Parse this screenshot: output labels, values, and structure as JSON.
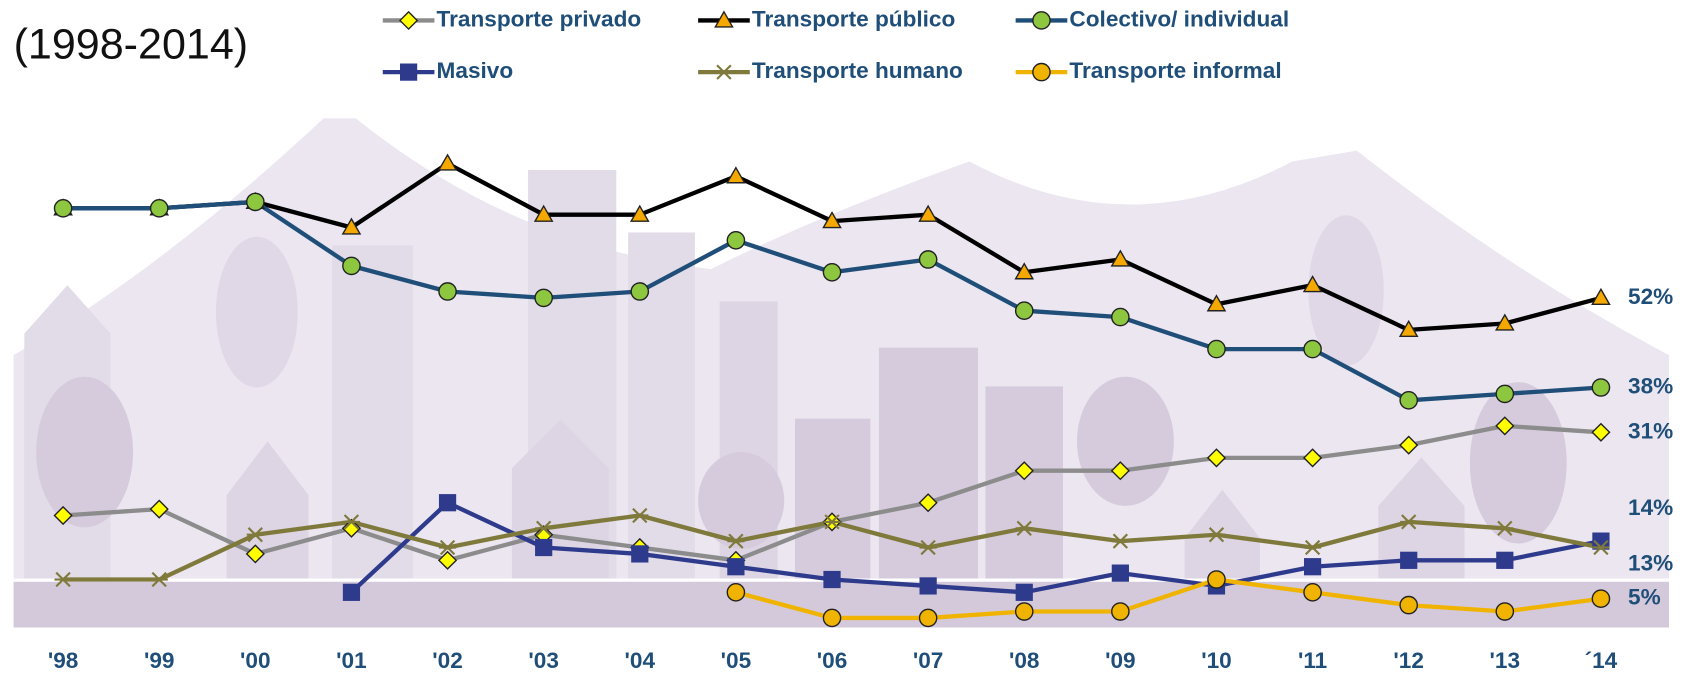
{
  "chart_data": {
    "type": "line",
    "title": "(1998-2014)",
    "categories": [
      "'98",
      "'99",
      "'00",
      "'01",
      "'02",
      "'03",
      "'04",
      "'05",
      "'06",
      "'07",
      "'08",
      "'09",
      "'10",
      "'11",
      "'12",
      "'13",
      "´14"
    ],
    "ylim": [
      0,
      75
    ],
    "series": [
      {
        "name": "Transporte privado",
        "color": "#8c8c8c",
        "marker": "diamond",
        "marker_color": "#ffff00",
        "values": [
          18,
          19,
          12,
          16,
          11,
          15,
          13,
          11,
          17,
          20,
          25,
          25,
          27,
          27,
          29,
          32,
          31
        ],
        "value_labels": [
          null,
          null,
          null,
          null,
          null,
          null,
          null,
          null,
          null,
          null,
          null,
          null,
          null,
          null,
          null,
          null,
          "31%"
        ]
      },
      {
        "name": "Transporte público",
        "color": "#000000",
        "marker": "triangle",
        "marker_color": "#f5a800",
        "values": [
          66,
          66,
          67,
          63,
          73,
          65,
          65,
          71,
          64,
          65,
          56,
          58,
          51,
          54,
          47,
          48,
          52
        ],
        "value_labels": [
          null,
          null,
          null,
          null,
          null,
          null,
          null,
          null,
          null,
          null,
          null,
          null,
          null,
          null,
          null,
          null,
          "52%"
        ]
      },
      {
        "name": "Colectivo/ individual",
        "color": "#1f4e79",
        "marker": "circle",
        "marker_color": "#8dc63f",
        "values": [
          66,
          66,
          67,
          57,
          53,
          52,
          53,
          61,
          56,
          58,
          50,
          49,
          44,
          44,
          36,
          37,
          38
        ],
        "value_labels": [
          null,
          null,
          null,
          null,
          null,
          null,
          null,
          null,
          null,
          null,
          null,
          null,
          null,
          null,
          null,
          null,
          "38%"
        ]
      },
      {
        "name": "Masivo",
        "color": "#2e3a8c",
        "marker": "square",
        "marker_color": "#2e3a8c",
        "values": [
          null,
          null,
          null,
          6,
          20,
          13,
          12,
          10,
          8,
          7,
          6,
          9,
          7,
          10,
          11,
          11,
          14
        ],
        "value_labels": [
          null,
          null,
          null,
          null,
          null,
          null,
          null,
          null,
          null,
          null,
          null,
          null,
          null,
          null,
          null,
          null,
          "14%"
        ]
      },
      {
        "name": "Transporte humano",
        "color": "#7f7a3c",
        "marker": "asterisk",
        "marker_color": "#7f7a3c",
        "values": [
          8,
          8,
          15,
          17,
          13,
          16,
          18,
          14,
          17,
          13,
          16,
          14,
          15,
          13,
          17,
          16,
          13
        ],
        "value_labels": [
          null,
          null,
          null,
          null,
          null,
          null,
          null,
          null,
          null,
          null,
          null,
          null,
          null,
          null,
          null,
          null,
          "13%"
        ]
      },
      {
        "name": "Transporte informal",
        "color": "#f0b400",
        "marker": "circle",
        "marker_color": "#f0b400",
        "values": [
          null,
          null,
          null,
          null,
          null,
          null,
          null,
          6,
          2,
          2,
          3,
          3,
          8,
          6,
          4,
          3,
          5
        ],
        "value_labels": [
          null,
          null,
          null,
          null,
          null,
          null,
          null,
          null,
          null,
          null,
          null,
          null,
          null,
          null,
          null,
          null,
          "5%"
        ]
      }
    ]
  }
}
